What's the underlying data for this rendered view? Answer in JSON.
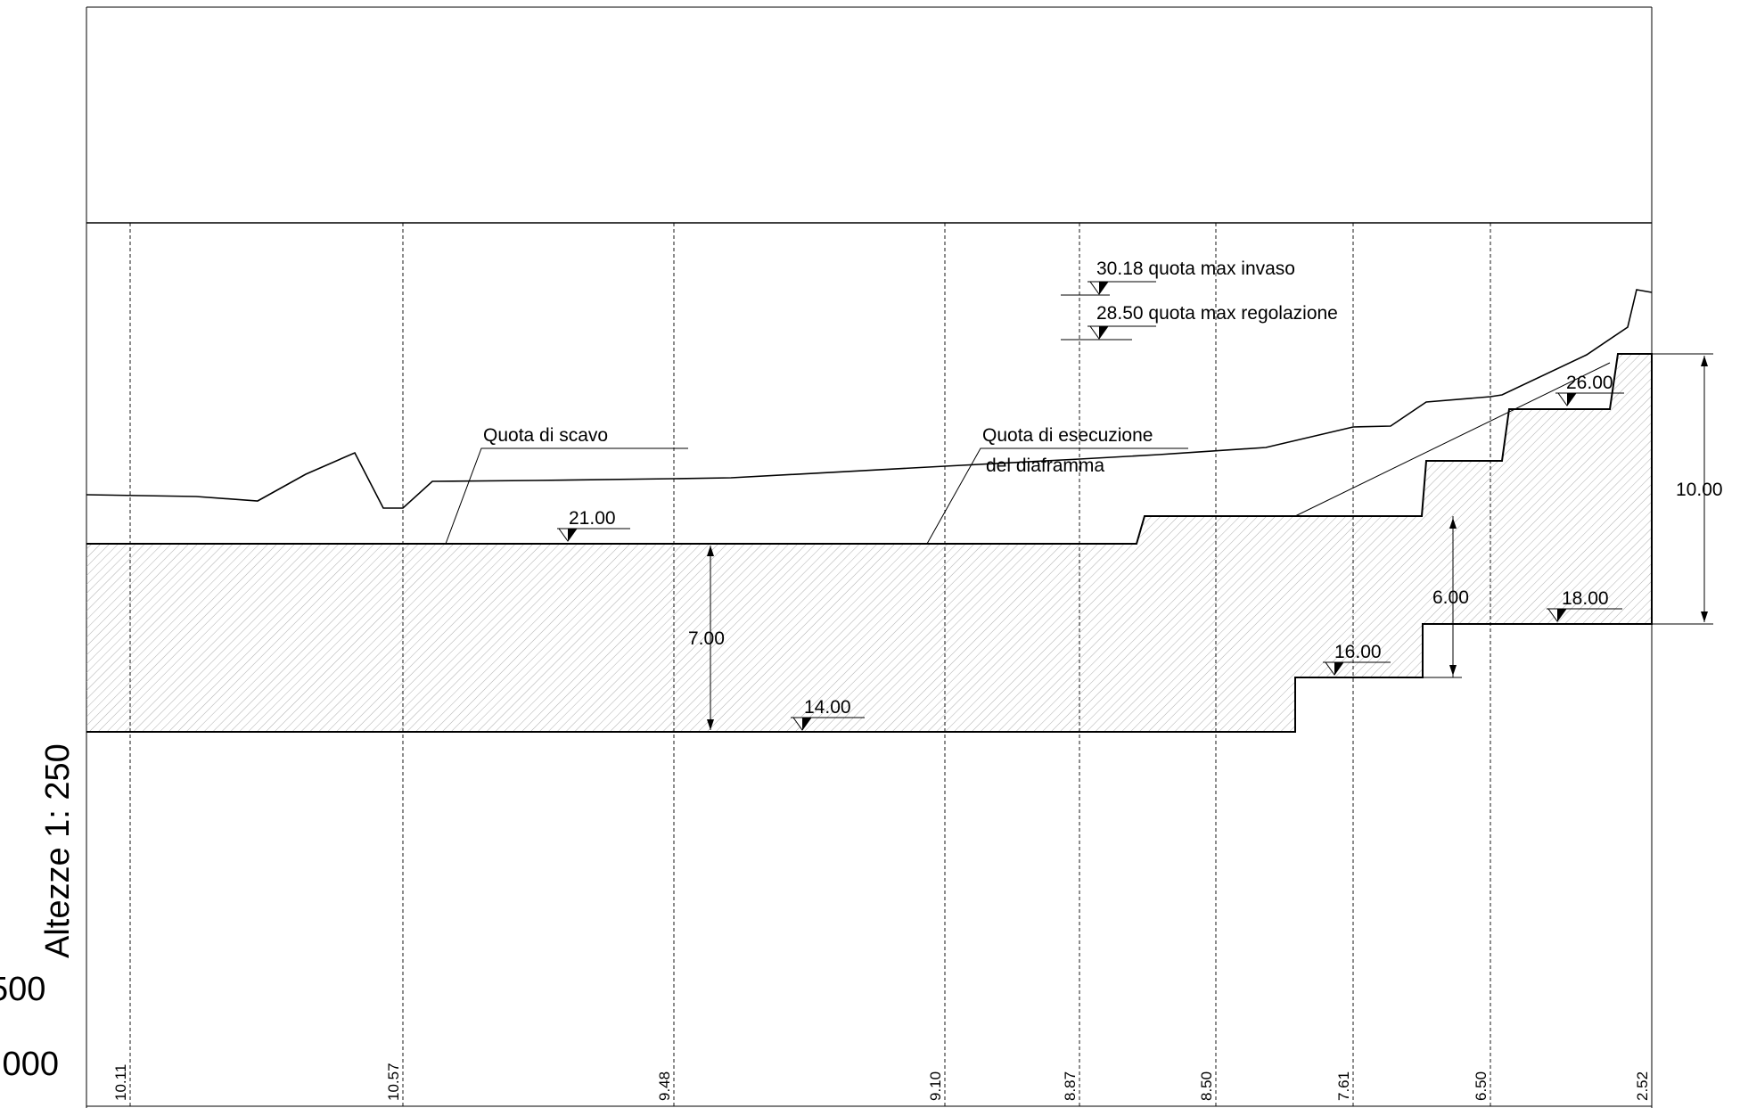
{
  "scale": {
    "heights_label": "Altezze 1: 250",
    "lengths_label_partial": "500",
    "reference_partial": ".000"
  },
  "annotations": {
    "max_invaso": "30.18 quota max invaso",
    "max_regolazione": "28.50 quota max regolazione",
    "quota_scavo": "Quota di scavo",
    "quota_diaframma_1": "Quota di esecuzione",
    "quota_diaframma_2": "del diaframma"
  },
  "levels": {
    "l21": "21.00",
    "l14": "14.00",
    "l16": "16.00",
    "l18": "18.00",
    "l26": "26.00"
  },
  "dimensions": {
    "d7": "7.00",
    "d6": "6.00",
    "d10": "10.00"
  },
  "section_values": [
    "10.11",
    "10.57",
    "9.48",
    "9.10",
    "8.87",
    "8.50",
    "7.61",
    "6.50",
    "2.52"
  ]
}
